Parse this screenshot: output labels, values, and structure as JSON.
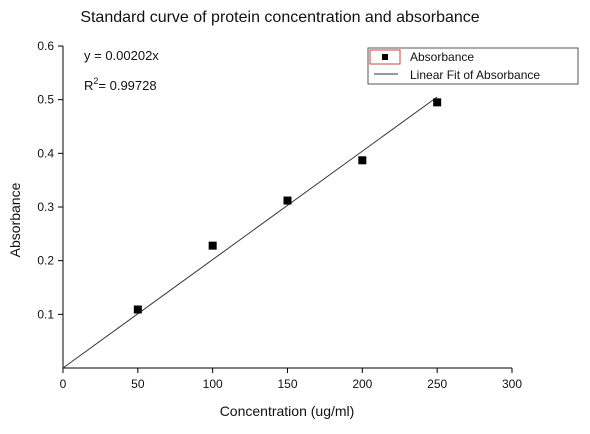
{
  "chart_data": {
    "type": "scatter",
    "title": "Standard curve of protein concentration and absorbance",
    "xlabel": "Concentration (ug/ml)",
    "ylabel": "Absorbance",
    "xlim": [
      0,
      300
    ],
    "ylim": [
      0,
      0.6
    ],
    "xticks": [
      "0",
      "50",
      "100",
      "150",
      "200",
      "250",
      "300"
    ],
    "yticks": [
      "0.1",
      "0.2",
      "0.3",
      "0.4",
      "0.5",
      "0.6"
    ],
    "grid": false,
    "legend_position": "top-right",
    "series": [
      {
        "name": "Absorbance",
        "kind": "scatter",
        "marker": "square",
        "color": "#000000",
        "x": [
          50,
          100,
          150,
          200,
          250
        ],
        "y": [
          0.109,
          0.228,
          0.312,
          0.387,
          0.495
        ]
      },
      {
        "name": "Linear Fit of Absorbance",
        "kind": "line",
        "color": "#333333",
        "x": [
          0,
          250
        ],
        "y": [
          0,
          0.505
        ]
      }
    ],
    "annotations": {
      "equation": "y = 0.00202x",
      "r2_label": "R",
      "r2_sup": "2",
      "r2_value": "= 0.99728"
    }
  }
}
